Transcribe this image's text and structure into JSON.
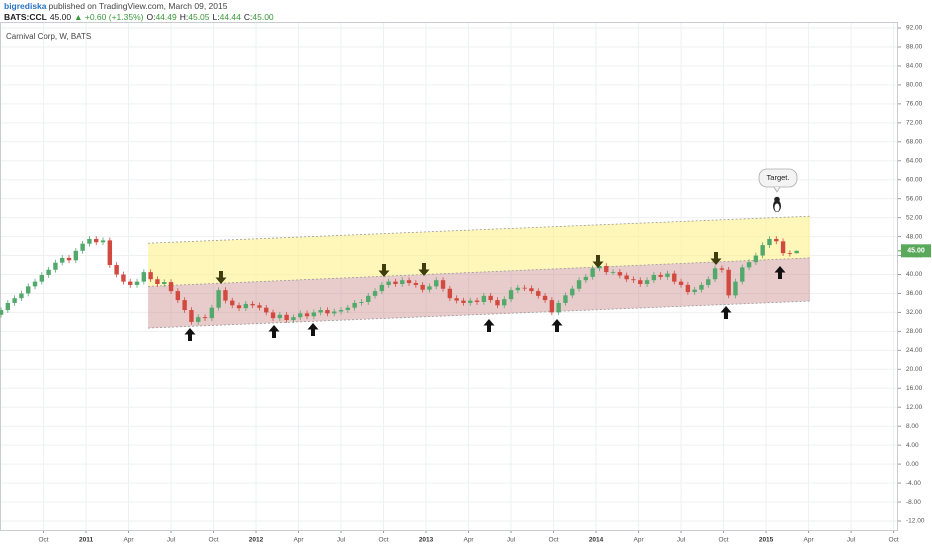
{
  "header": {
    "author": "bigrediska",
    "published": "published on TradingView.com, March 09, 2015",
    "symbol": "BATS:CCL",
    "change": "▲ +0.60 (+1.35%)",
    "ohlc": [
      {
        "key": "O:",
        "value": "44.49"
      },
      {
        "key": "H:",
        "value": "45.05"
      },
      {
        "key": "L:",
        "value": "44.44"
      },
      {
        "key": "C:",
        "value": "45.00"
      }
    ]
  },
  "chart_data": {
    "type": "candlestick",
    "title": "Carnival Corp, W, BATS",
    "annotation": "Target.",
    "x": [
      2010.5,
      2010.54,
      2010.58,
      2010.62,
      2010.66,
      2010.7,
      2010.74,
      2010.78,
      2010.82,
      2010.86,
      2010.9,
      2010.94,
      2010.98,
      2011.02,
      2011.06,
      2011.1,
      2011.14,
      2011.18,
      2011.22,
      2011.26,
      2011.3,
      2011.34,
      2011.38,
      2011.42,
      2011.46,
      2011.5,
      2011.54,
      2011.58,
      2011.62,
      2011.66,
      2011.7,
      2011.74,
      2011.78,
      2011.82,
      2011.86,
      2011.9,
      2011.94,
      2011.98,
      2012.02,
      2012.06,
      2012.1,
      2012.14,
      2012.18,
      2012.22,
      2012.26,
      2012.3,
      2012.34,
      2012.38,
      2012.42,
      2012.46,
      2012.5,
      2012.54,
      2012.58,
      2012.62,
      2012.66,
      2012.7,
      2012.74,
      2012.78,
      2012.82,
      2012.86,
      2012.9,
      2012.94,
      2012.98,
      2013.02,
      2013.06,
      2013.1,
      2013.14,
      2013.18,
      2013.22,
      2013.26,
      2013.3,
      2013.34,
      2013.38,
      2013.42,
      2013.46,
      2013.5,
      2013.54,
      2013.58,
      2013.62,
      2013.66,
      2013.7,
      2013.74,
      2013.78,
      2013.82,
      2013.86,
      2013.9,
      2013.94,
      2013.98,
      2014.02,
      2014.06,
      2014.1,
      2014.14,
      2014.18,
      2014.22,
      2014.26,
      2014.3,
      2014.34,
      2014.38,
      2014.42,
      2014.46,
      2014.5,
      2014.54,
      2014.58,
      2014.62,
      2014.66,
      2014.7,
      2014.74,
      2014.78,
      2014.82,
      2014.86,
      2014.9,
      2014.94,
      2014.98,
      2015.02,
      2015.06,
      2015.1,
      2015.14,
      2015.18
    ],
    "open": [
      31.5,
      32.5,
      34.0,
      35.0,
      36.0,
      37.5,
      38.5,
      39.9,
      41.0,
      42.5,
      43.5,
      43.0,
      45.0,
      46.5,
      47.5,
      46.8,
      47.2,
      42.0,
      40.0,
      38.5,
      37.8,
      38.5,
      40.5,
      39.0,
      38.0,
      38.4,
      36.5,
      34.6,
      32.5,
      30.0,
      31.0,
      30.8,
      33.0,
      36.7,
      34.5,
      33.5,
      32.9,
      33.8,
      33.5,
      33.0,
      32.0,
      30.8,
      31.5,
      30.4,
      31.0,
      31.8,
      31.2,
      32.0,
      32.5,
      31.8,
      32.2,
      32.5,
      33.0,
      34.0,
      34.2,
      35.5,
      36.5,
      37.8,
      38.5,
      38.0,
      38.8,
      38.2,
      37.8,
      36.8,
      37.5,
      38.8,
      37.0,
      35.0,
      34.5,
      34.0,
      34.5,
      34.2,
      35.5,
      34.6,
      33.5,
      34.8,
      36.7,
      37.2,
      37.1,
      36.5,
      35.5,
      34.6,
      32.0,
      34.0,
      35.6,
      37.0,
      38.8,
      39.5,
      41.3,
      41.8,
      40.5,
      40.5,
      39.8,
      39.0,
      38.8,
      38.0,
      38.8,
      39.9,
      39.5,
      40.2,
      38.5,
      37.8,
      36.3,
      36.8,
      37.8,
      39.0,
      41.3,
      41.0,
      35.6,
      38.5,
      41.5,
      42.6,
      44.0,
      46.2,
      47.5,
      47.0,
      44.5,
      44.49
    ],
    "high": [
      33.1,
      34.6,
      35.6,
      36.6,
      38.1,
      39.1,
      40.5,
      41.6,
      43.1,
      44.1,
      44.1,
      45.6,
      47.1,
      48.1,
      48.1,
      47.8,
      47.8,
      42.6,
      40.6,
      39.1,
      39.1,
      41.1,
      41.1,
      39.6,
      39.0,
      39.0,
      37.1,
      35.2,
      33.1,
      31.6,
      31.6,
      33.6,
      37.3,
      37.3,
      35.1,
      34.1,
      34.4,
      34.4,
      34.1,
      33.6,
      32.6,
      32.1,
      32.1,
      31.6,
      32.4,
      32.4,
      32.6,
      33.1,
      33.1,
      32.8,
      33.1,
      33.6,
      34.6,
      34.8,
      36.1,
      37.1,
      38.4,
      39.1,
      39.1,
      39.4,
      39.4,
      38.8,
      38.4,
      38.1,
      39.4,
      39.4,
      37.6,
      35.6,
      35.1,
      35.1,
      35.1,
      36.1,
      36.1,
      35.2,
      35.4,
      37.3,
      37.8,
      37.8,
      37.7,
      37.1,
      36.1,
      35.2,
      34.6,
      36.2,
      37.6,
      39.4,
      40.1,
      41.9,
      42.4,
      42.4,
      41.1,
      41.1,
      40.4,
      39.6,
      39.4,
      39.4,
      40.5,
      40.5,
      40.8,
      40.8,
      39.1,
      38.4,
      37.4,
      38.4,
      39.6,
      41.9,
      41.9,
      41.6,
      39.1,
      42.1,
      43.2,
      44.6,
      46.8,
      48.1,
      48.1,
      47.6,
      45.1,
      45.05
    ],
    "low": [
      30.9,
      31.9,
      33.4,
      34.4,
      35.4,
      36.9,
      37.9,
      39.3,
      40.4,
      41.9,
      42.4,
      42.4,
      44.4,
      45.9,
      46.2,
      46.2,
      41.4,
      39.4,
      37.9,
      37.2,
      37.2,
      37.9,
      38.4,
      37.4,
      37.4,
      35.9,
      34.0,
      31.9,
      29.4,
      29.4,
      30.2,
      30.2,
      32.4,
      33.9,
      32.9,
      32.3,
      32.3,
      32.9,
      32.4,
      31.4,
      30.2,
      30.2,
      29.8,
      29.8,
      30.4,
      30.6,
      30.6,
      31.4,
      31.2,
      31.2,
      31.6,
      31.9,
      32.4,
      33.4,
      33.6,
      34.9,
      35.9,
      37.2,
      37.4,
      37.4,
      37.6,
      37.2,
      36.2,
      36.2,
      36.9,
      36.4,
      34.4,
      33.9,
      33.4,
      33.4,
      33.6,
      33.6,
      34.0,
      32.9,
      32.9,
      34.2,
      36.1,
      36.5,
      35.9,
      34.9,
      34.0,
      31.4,
      31.4,
      33.4,
      35.0,
      36.4,
      38.2,
      38.9,
      40.7,
      39.9,
      39.9,
      39.2,
      38.4,
      38.2,
      37.4,
      37.4,
      38.2,
      38.9,
      38.9,
      37.9,
      37.2,
      35.7,
      35.7,
      36.2,
      37.2,
      38.4,
      40.4,
      35.0,
      35.0,
      37.9,
      40.9,
      42.0,
      43.4,
      45.6,
      46.4,
      43.9,
      43.8,
      44.44
    ],
    "close": [
      32.5,
      34.0,
      35.0,
      36.0,
      37.5,
      38.5,
      39.9,
      41.0,
      42.5,
      43.5,
      43.0,
      45.0,
      46.5,
      47.5,
      46.8,
      47.2,
      42.0,
      40.0,
      38.5,
      37.8,
      38.5,
      40.5,
      39.0,
      38.0,
      38.4,
      36.5,
      34.6,
      32.5,
      30.0,
      31.0,
      30.8,
      33.0,
      36.7,
      34.5,
      33.5,
      32.9,
      33.8,
      33.5,
      33.0,
      32.0,
      30.8,
      31.5,
      30.4,
      31.0,
      31.8,
      31.2,
      32.0,
      32.5,
      31.8,
      32.2,
      32.5,
      33.0,
      34.0,
      34.2,
      35.5,
      36.5,
      37.8,
      38.5,
      38.0,
      38.8,
      38.2,
      37.8,
      36.8,
      37.5,
      38.8,
      37.0,
      35.0,
      34.5,
      34.0,
      34.5,
      34.2,
      35.5,
      34.6,
      33.5,
      34.8,
      36.7,
      37.2,
      37.1,
      36.5,
      35.5,
      34.6,
      32.0,
      34.0,
      35.6,
      37.0,
      38.8,
      39.5,
      41.3,
      41.8,
      40.5,
      40.5,
      39.8,
      39.0,
      38.8,
      38.0,
      38.8,
      39.9,
      39.5,
      40.2,
      38.5,
      37.8,
      36.3,
      36.8,
      37.8,
      39.0,
      41.3,
      41.0,
      35.6,
      38.5,
      41.5,
      42.6,
      44.0,
      46.2,
      47.5,
      47.0,
      44.5,
      44.4,
      45.0
    ],
    "up_color": "#53a86c",
    "down_color": "#d2493f",
    "xlim": [
      2010.494,
      2015.776
    ],
    "ylim": [
      -13.9,
      93.27
    ],
    "xticks": [
      {
        "value": 2010.75,
        "label": "Oct"
      },
      {
        "value": 2011,
        "label": "2011"
      },
      {
        "value": 2011.25,
        "label": "Apr"
      },
      {
        "value": 2011.5,
        "label": "Jul"
      },
      {
        "value": 2011.75,
        "label": "Oct"
      },
      {
        "value": 2012,
        "label": "2012"
      },
      {
        "value": 2012.25,
        "label": "Apr"
      },
      {
        "value": 2012.5,
        "label": "Jul"
      },
      {
        "value": 2012.75,
        "label": "Oct"
      },
      {
        "value": 2013,
        "label": "2013"
      },
      {
        "value": 2013.25,
        "label": "Apr"
      },
      {
        "value": 2013.5,
        "label": "Jul"
      },
      {
        "value": 2013.75,
        "label": "Oct"
      },
      {
        "value": 2014,
        "label": "2014"
      },
      {
        "value": 2014.25,
        "label": "Apr"
      },
      {
        "value": 2014.5,
        "label": "Jul"
      },
      {
        "value": 2014.75,
        "label": "Oct"
      },
      {
        "value": 2015,
        "label": "2015"
      },
      {
        "value": 2015.25,
        "label": "Apr"
      },
      {
        "value": 2015.5,
        "label": "Jul"
      },
      {
        "value": 2015.75,
        "label": "Oct"
      }
    ],
    "yticks": [
      {
        "value": 92,
        "label": "92.00"
      },
      {
        "value": 88,
        "label": "88.00"
      },
      {
        "value": 84,
        "label": "84.00"
      },
      {
        "value": 80,
        "label": "80.00"
      },
      {
        "value": 76,
        "label": "76.00"
      },
      {
        "value": 72,
        "label": "72.00"
      },
      {
        "value": 68,
        "label": "68.00"
      },
      {
        "value": 64,
        "label": "64.00"
      },
      {
        "value": 60,
        "label": "60.00"
      },
      {
        "value": 56,
        "label": "56.00"
      },
      {
        "value": 52,
        "label": "52.00"
      },
      {
        "value": 48,
        "label": "48.00"
      },
      {
        "value": 44,
        "label": "44.00"
      },
      {
        "value": 40,
        "label": "40.00"
      },
      {
        "value": 36,
        "label": "36.00"
      },
      {
        "value": 32,
        "label": "32.00"
      },
      {
        "value": 28,
        "label": "28.00"
      },
      {
        "value": 24,
        "label": "24.00"
      },
      {
        "value": 20,
        "label": "20.00"
      },
      {
        "value": 16,
        "label": "16.00"
      },
      {
        "value": 12,
        "label": "12.00"
      },
      {
        "value": 8,
        "label": "8.00"
      },
      {
        "value": 4,
        "label": "4.00"
      },
      {
        "value": 0,
        "label": "0.00"
      },
      {
        "value": -4,
        "label": "-4.00"
      },
      {
        "value": -8,
        "label": "-8.00"
      },
      {
        "value": -12,
        "label": "-12.00"
      }
    ],
    "grid": true,
    "last_price": {
      "value": 45,
      "label": "45.00"
    },
    "channel": {
      "x": [
        2011.365,
        2015.259
      ],
      "upper": [
        46.6,
        52.3
      ],
      "middle": [
        37.5,
        43.5
      ],
      "lower": [
        28.7,
        34.4
      ]
    }
  }
}
